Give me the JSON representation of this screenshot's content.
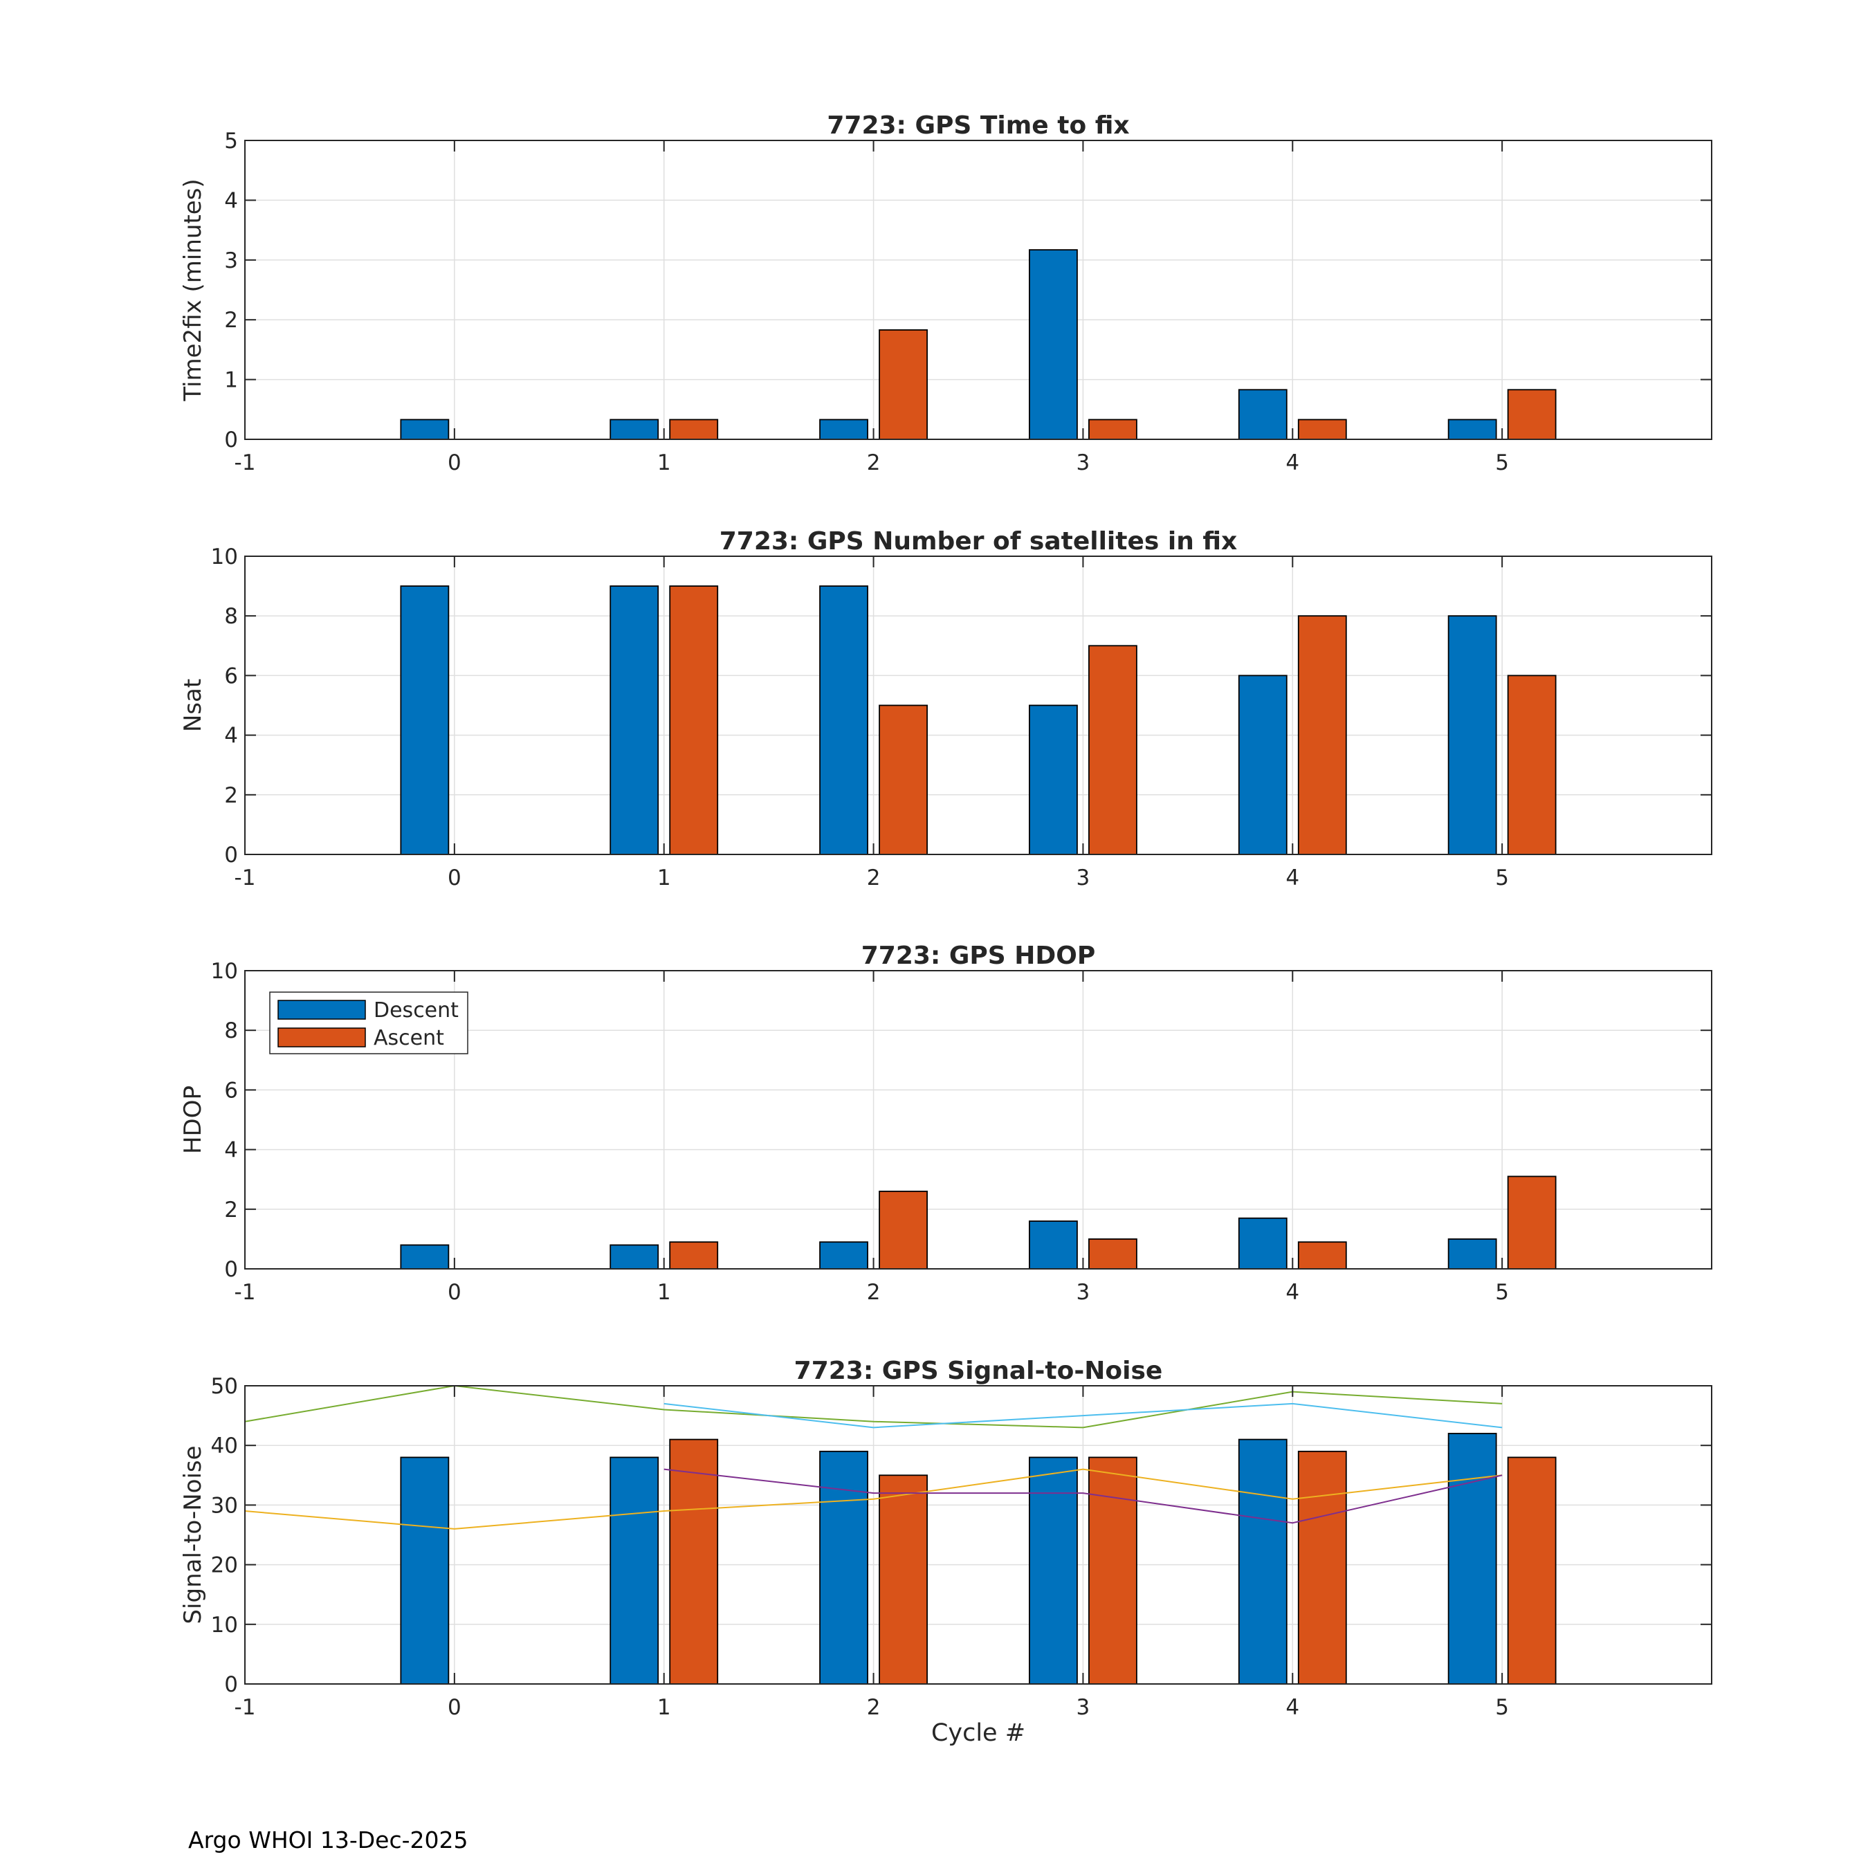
{
  "footer": "Argo WHOI 13-Dec-2025",
  "colors": {
    "descent": "#0072BD",
    "ascent": "#D95319",
    "grid": "#dfdfdf",
    "axis": "#262626"
  },
  "chart_data": [
    {
      "type": "bar",
      "title": "7723: GPS Time to fix",
      "ylabel": "Time2fix (minutes)",
      "xlabel": "",
      "xlim": [
        -1,
        6
      ],
      "ylim": [
        0,
        5
      ],
      "xticks": [
        -1,
        0,
        1,
        2,
        3,
        4,
        5
      ],
      "yticks": [
        0,
        1,
        2,
        3,
        4,
        5
      ],
      "grid": true,
      "categories": [
        0,
        1,
        2,
        3,
        4,
        5
      ],
      "series": [
        {
          "name": "Descent",
          "color": "#0072BD",
          "values": [
            0.33,
            0.33,
            0.33,
            3.17,
            0.83,
            0.33
          ]
        },
        {
          "name": "Ascent",
          "color": "#D95319",
          "values": [
            0,
            0.33,
            1.83,
            0.33,
            0.33,
            0.83
          ]
        }
      ]
    },
    {
      "type": "bar",
      "title": "7723: GPS Number of satellites in fix",
      "ylabel": "Nsat",
      "xlabel": "",
      "xlim": [
        -1,
        6
      ],
      "ylim": [
        0,
        10
      ],
      "xticks": [
        -1,
        0,
        1,
        2,
        3,
        4,
        5
      ],
      "yticks": [
        0,
        2,
        4,
        6,
        8,
        10
      ],
      "grid": true,
      "categories": [
        0,
        1,
        2,
        3,
        4,
        5
      ],
      "series": [
        {
          "name": "Descent",
          "color": "#0072BD",
          "values": [
            9,
            9,
            9,
            5,
            6,
            8
          ]
        },
        {
          "name": "Ascent",
          "color": "#D95319",
          "values": [
            0,
            9,
            5,
            7,
            8,
            6
          ]
        }
      ]
    },
    {
      "type": "bar",
      "title": "7723: GPS HDOP",
      "ylabel": "HDOP",
      "xlabel": "",
      "xlim": [
        -1,
        6
      ],
      "ylim": [
        0,
        10
      ],
      "xticks": [
        -1,
        0,
        1,
        2,
        3,
        4,
        5
      ],
      "yticks": [
        0,
        2,
        4,
        6,
        8,
        10
      ],
      "grid": true,
      "legend": {
        "position": "top-left",
        "entries": [
          "Descent",
          "Ascent"
        ]
      },
      "categories": [
        0,
        1,
        2,
        3,
        4,
        5
      ],
      "series": [
        {
          "name": "Descent",
          "color": "#0072BD",
          "values": [
            0.8,
            0.8,
            0.9,
            1.6,
            1.7,
            1.0
          ]
        },
        {
          "name": "Ascent",
          "color": "#D95319",
          "values": [
            0,
            0.9,
            2.6,
            1.0,
            0.9,
            3.1
          ]
        }
      ]
    },
    {
      "type": "bar",
      "title": "7723: GPS Signal-to-Noise",
      "ylabel": "Signal-to-Noise",
      "xlabel": "Cycle #",
      "xlim": [
        -1,
        6
      ],
      "ylim": [
        0,
        50
      ],
      "xticks": [
        -1,
        0,
        1,
        2,
        3,
        4,
        5
      ],
      "yticks": [
        0,
        10,
        20,
        30,
        40,
        50
      ],
      "grid": true,
      "categories": [
        0,
        1,
        2,
        3,
        4,
        5
      ],
      "series": [
        {
          "name": "Descent",
          "color": "#0072BD",
          "values": [
            38,
            38,
            39,
            38,
            41,
            42
          ]
        },
        {
          "name": "Ascent",
          "color": "#D95319",
          "values": [
            0,
            41,
            35,
            38,
            39,
            38
          ]
        }
      ],
      "lines": [
        {
          "color": "#77AC30",
          "x": [
            -1,
            0,
            1,
            2,
            3,
            4,
            5
          ],
          "y": [
            44,
            50,
            46,
            44,
            43,
            49,
            47
          ]
        },
        {
          "color": "#4DBEEE",
          "x": [
            1,
            2,
            3,
            4,
            5
          ],
          "y": [
            47,
            43,
            45,
            47,
            43
          ]
        },
        {
          "color": "#EDB120",
          "x": [
            -1,
            0,
            1,
            2,
            3,
            4,
            5
          ],
          "y": [
            29,
            26,
            29,
            31,
            36,
            31,
            35
          ]
        },
        {
          "color": "#7E2F8E",
          "x": [
            1,
            2,
            3,
            4,
            5
          ],
          "y": [
            36,
            32,
            32,
            27,
            35
          ]
        }
      ]
    }
  ]
}
